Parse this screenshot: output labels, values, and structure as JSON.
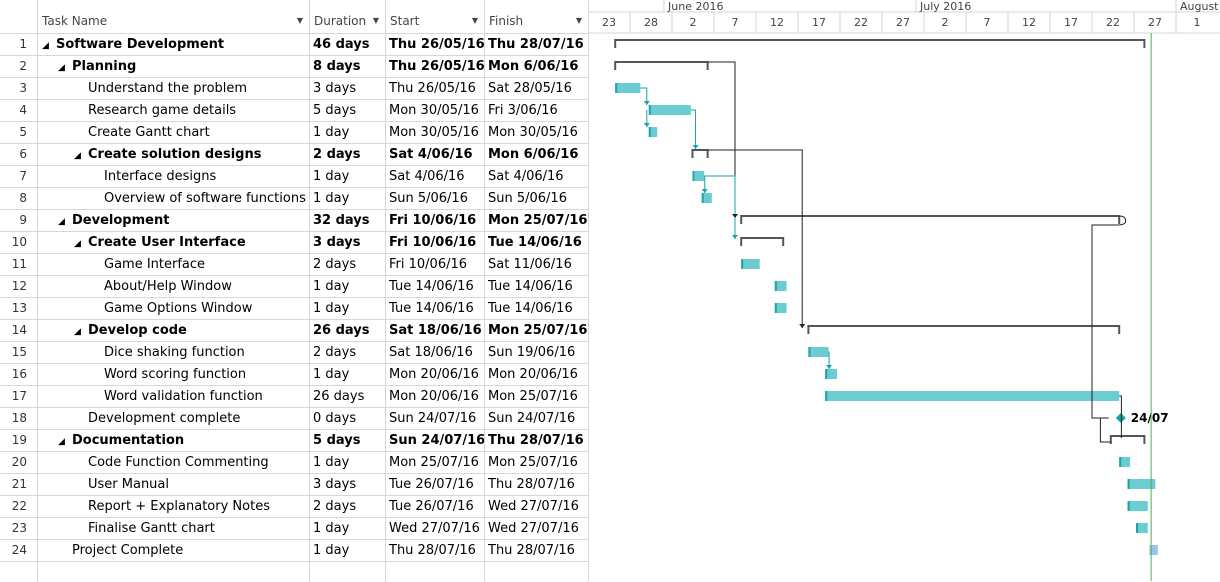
{
  "columns": {
    "num": "",
    "name": "Task Name",
    "duration": "Duration",
    "start": "Start",
    "finish": "Finish"
  },
  "timeline": {
    "months": [
      "June 2016",
      "July 2016",
      "August"
    ],
    "days": [
      "23",
      "28",
      "2",
      "7",
      "12",
      "17",
      "22",
      "27",
      "2",
      "7",
      "12",
      "17",
      "22",
      "27",
      "1"
    ]
  },
  "colors": {
    "task": "#6bccd1",
    "summary": "#555555",
    "link": "#1aa3a8",
    "link_dark": "#222222",
    "today": "#4caf50"
  },
  "tasks": [
    {
      "id": "1",
      "level": 0,
      "summary": true,
      "name": "Software Development",
      "duration": "46 days",
      "start": "Thu 26/05/16",
      "finish": "Thu 28/07/16",
      "s": 3,
      "f": 66
    },
    {
      "id": "2",
      "level": 1,
      "summary": true,
      "name": "Planning",
      "duration": "8 days",
      "start": "Thu 26/05/16",
      "finish": "Mon 6/06/16",
      "s": 3,
      "f": 14
    },
    {
      "id": "3",
      "level": 2,
      "summary": false,
      "name": "Understand the problem",
      "duration": "3 days",
      "start": "Thu 26/05/16",
      "finish": "Sat 28/05/16",
      "s": 3,
      "f": 6
    },
    {
      "id": "4",
      "level": 2,
      "summary": false,
      "name": "Research game details",
      "duration": "5 days",
      "start": "Mon 30/05/16",
      "finish": "Fri 3/06/16",
      "s": 7,
      "f": 12
    },
    {
      "id": "5",
      "level": 2,
      "summary": false,
      "name": "Create Gantt chart",
      "duration": "1 day",
      "start": "Mon 30/05/16",
      "finish": "Mon 30/05/16",
      "s": 7,
      "f": 8
    },
    {
      "id": "6",
      "level": 2,
      "summary": true,
      "name": "Create solution designs",
      "duration": "2 days",
      "start": "Sat 4/06/16",
      "finish": "Mon 6/06/16",
      "s": 12.2,
      "f": 14
    },
    {
      "id": "7",
      "level": 3,
      "summary": false,
      "name": "Interface designs",
      "duration": "1 day",
      "start": "Sat 4/06/16",
      "finish": "Sat 4/06/16",
      "s": 12.2,
      "f": 13.6
    },
    {
      "id": "8",
      "level": 3,
      "summary": false,
      "name": "Overview of software functions",
      "duration": "1 day",
      "start": "Sun 5/06/16",
      "finish": "Sun 5/06/16",
      "s": 13.3,
      "f": 14.5
    },
    {
      "id": "9",
      "level": 1,
      "summary": true,
      "name": "Development",
      "duration": "32 days",
      "start": "Fri 10/06/16",
      "finish": "Mon 25/07/16",
      "s": 18,
      "f": 63
    },
    {
      "id": "10",
      "level": 2,
      "summary": true,
      "name": "Create User Interface",
      "duration": "3 days",
      "start": "Fri 10/06/16",
      "finish": "Tue 14/06/16",
      "s": 18,
      "f": 23
    },
    {
      "id": "11",
      "level": 3,
      "summary": false,
      "name": "Game Interface",
      "duration": "2 days",
      "start": "Fri 10/06/16",
      "finish": "Sat 11/06/16",
      "s": 18,
      "f": 20.2
    },
    {
      "id": "12",
      "level": 3,
      "summary": false,
      "name": "About/Help Window",
      "duration": "1 day",
      "start": "Tue 14/06/16",
      "finish": "Tue 14/06/16",
      "s": 22,
      "f": 23.4
    },
    {
      "id": "13",
      "level": 3,
      "summary": false,
      "name": "Game Options Window",
      "duration": "1 day",
      "start": "Tue 14/06/16",
      "finish": "Tue 14/06/16",
      "s": 22,
      "f": 23.4
    },
    {
      "id": "14",
      "level": 2,
      "summary": true,
      "name": "Develop code",
      "duration": "26 days",
      "start": "Sat 18/06/16",
      "finish": "Mon 25/07/16",
      "s": 26,
      "f": 63
    },
    {
      "id": "15",
      "level": 3,
      "summary": false,
      "name": "Dice shaking function",
      "duration": "2 days",
      "start": "Sat 18/06/16",
      "finish": "Sun 19/06/16",
      "s": 26,
      "f": 28.4
    },
    {
      "id": "16",
      "level": 3,
      "summary": false,
      "name": "Word scoring function",
      "duration": "1 day",
      "start": "Mon 20/06/16",
      "finish": "Mon 20/06/16",
      "s": 28,
      "f": 29.4
    },
    {
      "id": "17",
      "level": 3,
      "summary": false,
      "name": "Word validation function",
      "duration": "26 days",
      "start": "Mon 20/06/16",
      "finish": "Mon 25/07/16",
      "s": 28,
      "f": 63
    },
    {
      "id": "18",
      "level": 2,
      "summary": false,
      "milestone": true,
      "name": "Development complete",
      "duration": "0 days",
      "start": "Sun 24/07/16",
      "finish": "Sun 24/07/16",
      "s": 62,
      "f": 62,
      "label": "24/07"
    },
    {
      "id": "19",
      "level": 1,
      "summary": true,
      "name": "Documentation",
      "duration": "5 days",
      "start": "Sun 24/07/16",
      "finish": "Thu 28/07/16",
      "s": 62,
      "f": 66
    },
    {
      "id": "20",
      "level": 2,
      "summary": false,
      "name": "Code Function Commenting",
      "duration": "1 day",
      "start": "Mon 25/07/16",
      "finish": "Mon 25/07/16",
      "s": 63,
      "f": 64.3
    },
    {
      "id": "21",
      "level": 2,
      "summary": false,
      "name": "User Manual",
      "duration": "3 days",
      "start": "Tue 26/07/16",
      "finish": "Thu 28/07/16",
      "s": 64,
      "f": 67.3
    },
    {
      "id": "22",
      "level": 2,
      "summary": false,
      "name": "Report + Explanatory Notes",
      "duration": "2 days",
      "start": "Tue 26/07/16",
      "finish": "Wed 27/07/16",
      "s": 64,
      "f": 66.4
    },
    {
      "id": "23",
      "level": 2,
      "summary": false,
      "name": "Finalise Gantt chart",
      "duration": "1 day",
      "start": "Wed 27/07/16",
      "finish": "Wed 27/07/16",
      "s": 65,
      "f": 66.4
    },
    {
      "id": "24",
      "level": 1,
      "summary": false,
      "done": true,
      "name": "Project Complete",
      "duration": "1 day",
      "start": "Thu 28/07/16",
      "finish": "Thu 28/07/16",
      "s": 66.6,
      "f": 67.6
    }
  ]
}
